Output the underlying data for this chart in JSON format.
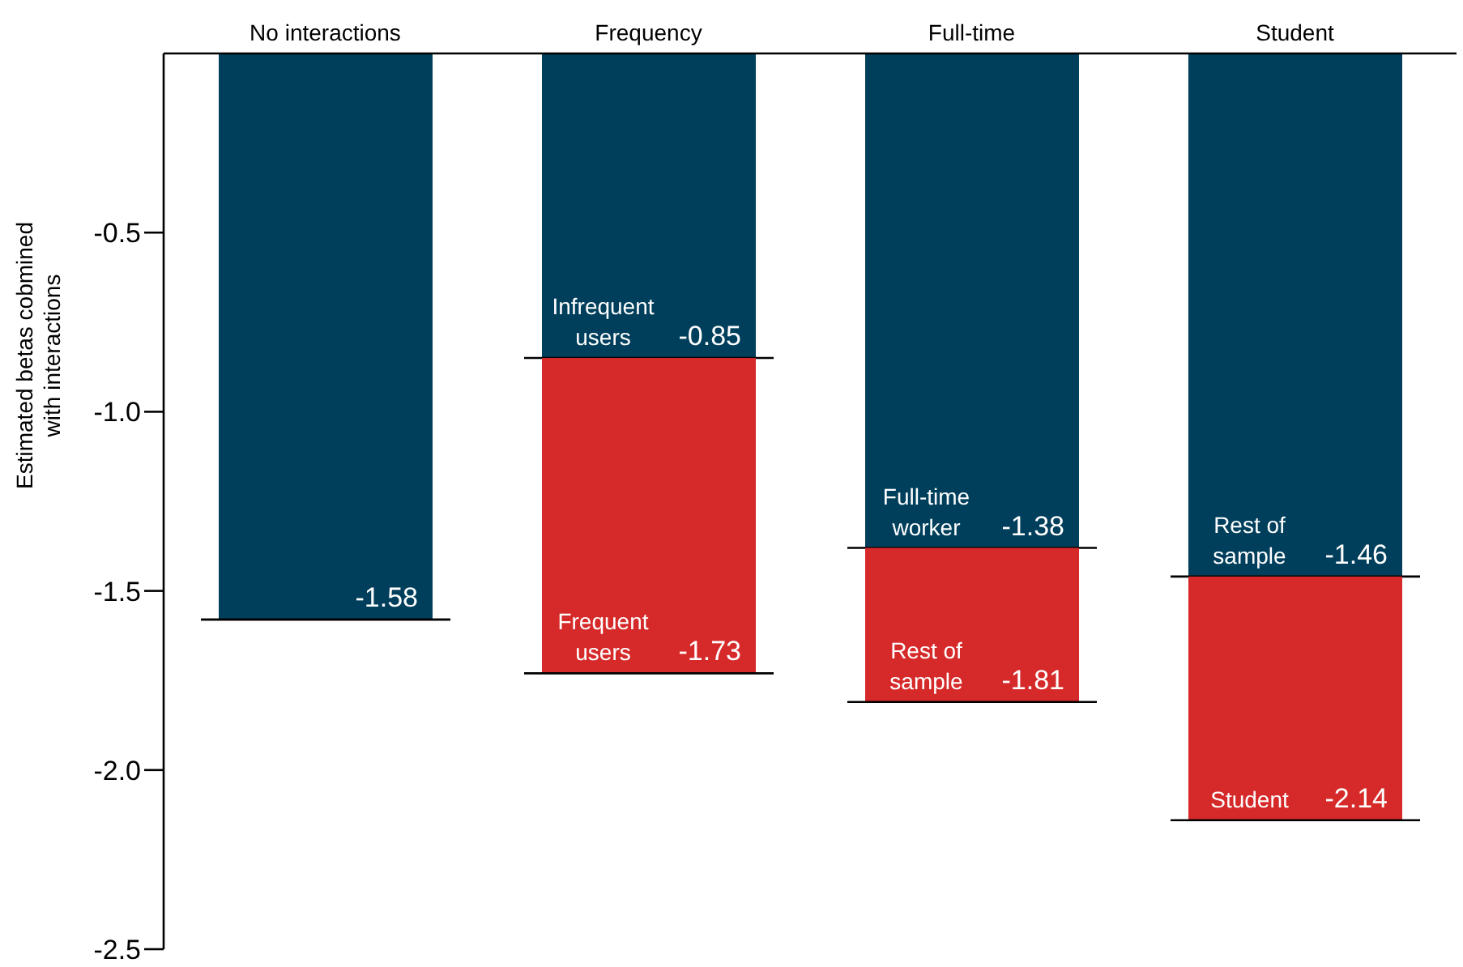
{
  "chart_data": {
    "type": "bar",
    "stacked": true,
    "totals": [
      null,
      "-1.73",
      "-1.81",
      "-2.14"
    ],
    "ylabel": "Estimated betas cobmined with interactions",
    "categories": [
      "No interactions",
      "Frequency",
      "Full-time",
      "Student"
    ],
    "series": [
      {
        "color": "#003f5c",
        "values": [
          -1.58,
          -0.85,
          -1.38,
          -1.46
        ],
        "value_labels": [
          "-1.58",
          "-0.85",
          "-1.38",
          "-1.46"
        ]
      },
      {
        "color": "#d62a2a",
        "values": [
          null,
          -0.88,
          -0.43,
          -0.68
        ]
      }
    ],
    "ylim": [
      -2.5,
      0
    ],
    "yticks": [
      -0.5,
      {
        "value": -1,
        "label": "-1.0"
      },
      -1.5,
      {
        "value": -2,
        "label": "-2.0"
      },
      -2.5
    ],
    "grid": false,
    "legend": false,
    "annotations": [
      {
        "text": "Infrequent users",
        "x": "Frequency",
        "y": -0.85
      },
      {
        "text": "Frequent users",
        "x": "Frequency",
        "y": -1.73
      },
      {
        "text": "Full-time worker",
        "x": "Full-time",
        "y": -1.38
      },
      {
        "text": "Rest of sample",
        "x": "Full-time",
        "y": -1.81
      },
      {
        "text": "Rest of sample",
        "x": "Student",
        "y": -1.46
      },
      {
        "text": "Student",
        "x": "Student",
        "y": -2.14
      }
    ]
  }
}
